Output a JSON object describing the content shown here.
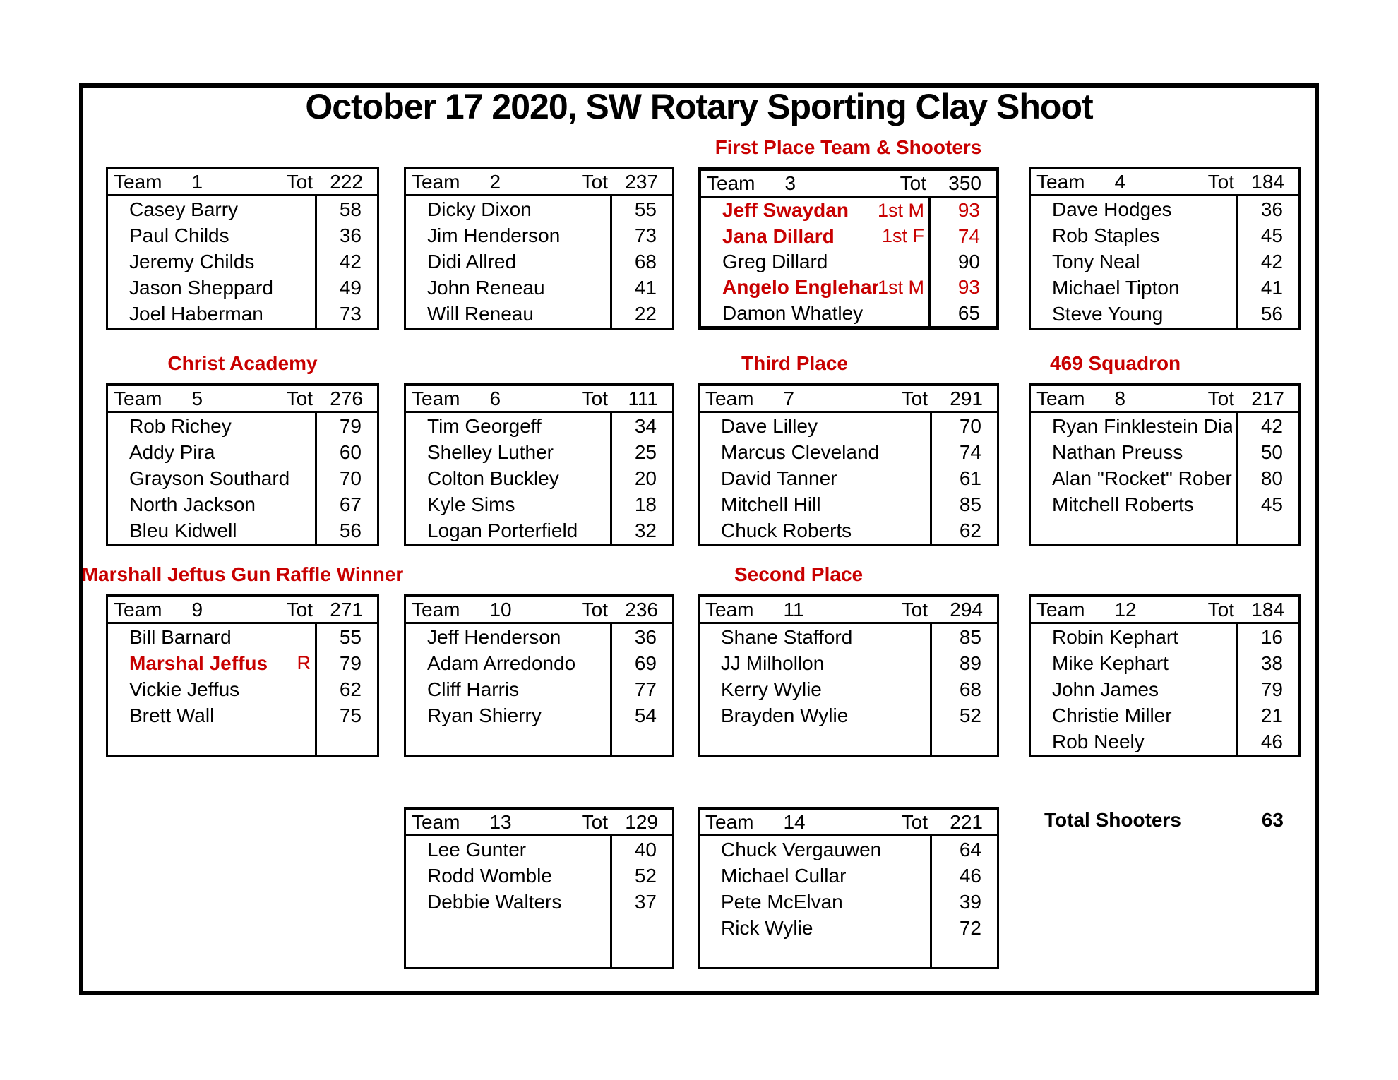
{
  "title": "October 17 2020, SW Rotary Sporting Clay Shoot",
  "summary": {
    "label": "Total Shooters",
    "value": "63"
  },
  "colors": {
    "accent_red": "#C80000",
    "text_black": "#000000",
    "border_black": "#000000"
  },
  "header_labels": {
    "team": "Team",
    "tot": "Tot"
  },
  "teams": [
    {
      "number": "1",
      "total": "222",
      "caption": "",
      "players": [
        {
          "name": "Casey Barry",
          "tag": "",
          "score": "58",
          "red_name": false,
          "red_score": false
        },
        {
          "name": "Paul Childs",
          "tag": "",
          "score": "36",
          "red_name": false,
          "red_score": false
        },
        {
          "name": "Jeremy Childs",
          "tag": "",
          "score": "42",
          "red_name": false,
          "red_score": false
        },
        {
          "name": "Jason Sheppard",
          "tag": "",
          "score": "49",
          "red_name": false,
          "red_score": false
        },
        {
          "name": "Joel Haberman",
          "tag": "",
          "score": "73",
          "red_name": false,
          "red_score": false
        }
      ]
    },
    {
      "number": "2",
      "total": "237",
      "caption": "",
      "players": [
        {
          "name": "Dicky Dixon",
          "tag": "",
          "score": "55",
          "red_name": false,
          "red_score": false
        },
        {
          "name": "Jim Henderson",
          "tag": "",
          "score": "73",
          "red_name": false,
          "red_score": false
        },
        {
          "name": "Didi Allred",
          "tag": "",
          "score": "68",
          "red_name": false,
          "red_score": false
        },
        {
          "name": "John Reneau",
          "tag": "",
          "score": "41",
          "red_name": false,
          "red_score": false
        },
        {
          "name": "Will Reneau",
          "tag": "",
          "score": "22",
          "red_name": false,
          "red_score": false
        }
      ]
    },
    {
      "number": "3",
      "total": "350",
      "caption": "First Place Team & Shooters",
      "players": [
        {
          "name": "Jeff Swaydan",
          "tag": "1st M",
          "score": "93",
          "red_name": true,
          "red_score": true
        },
        {
          "name": "Jana Dillard",
          "tag": "1st F",
          "score": "74",
          "red_name": true,
          "red_score": true
        },
        {
          "name": "Greg Dillard",
          "tag": "",
          "score": "90",
          "red_name": false,
          "red_score": false
        },
        {
          "name": "Angelo Englehart",
          "tag": "1st M",
          "score": "93",
          "red_name": true,
          "red_score": true
        },
        {
          "name": "Damon Whatley",
          "tag": "",
          "score": "65",
          "red_name": false,
          "red_score": false
        }
      ]
    },
    {
      "number": "4",
      "total": "184",
      "caption": "",
      "players": [
        {
          "name": "Dave Hodges",
          "tag": "",
          "score": "36",
          "red_name": false,
          "red_score": false
        },
        {
          "name": "Rob Staples",
          "tag": "",
          "score": "45",
          "red_name": false,
          "red_score": false
        },
        {
          "name": "Tony Neal",
          "tag": "",
          "score": "42",
          "red_name": false,
          "red_score": false
        },
        {
          "name": "Michael Tipton",
          "tag": "",
          "score": "41",
          "red_name": false,
          "red_score": false
        },
        {
          "name": "Steve Young",
          "tag": "",
          "score": "56",
          "red_name": false,
          "red_score": false
        }
      ]
    },
    {
      "number": "5",
      "total": "276",
      "caption": "Christ Academy",
      "players": [
        {
          "name": "Rob Richey",
          "tag": "",
          "score": "79",
          "red_name": false,
          "red_score": false
        },
        {
          "name": "Addy Pira",
          "tag": "",
          "score": "60",
          "red_name": false,
          "red_score": false
        },
        {
          "name": "Grayson Southard",
          "tag": "",
          "score": "70",
          "red_name": false,
          "red_score": false
        },
        {
          "name": "North Jackson",
          "tag": "",
          "score": "67",
          "red_name": false,
          "red_score": false
        },
        {
          "name": "Bleu Kidwell",
          "tag": "",
          "score": "56",
          "red_name": false,
          "red_score": false
        }
      ]
    },
    {
      "number": "6",
      "total": "111",
      "caption": "",
      "players": [
        {
          "name": "Tim Georgeff",
          "tag": "",
          "score": "34",
          "red_name": false,
          "red_score": false
        },
        {
          "name": "Shelley Luther",
          "tag": "",
          "score": "25",
          "red_name": false,
          "red_score": false
        },
        {
          "name": "Colton Buckley",
          "tag": "",
          "score": "20",
          "red_name": false,
          "red_score": false
        },
        {
          "name": "Kyle Sims",
          "tag": "",
          "score": "18",
          "red_name": false,
          "red_score": false
        },
        {
          "name": "Logan Porterfield",
          "tag": "",
          "score": "32",
          "red_name": false,
          "red_score": false
        }
      ]
    },
    {
      "number": "7",
      "total": "291",
      "caption": "Third Place",
      "players": [
        {
          "name": "Dave Lilley",
          "tag": "",
          "score": "70",
          "red_name": false,
          "red_score": false
        },
        {
          "name": "Marcus Cleveland",
          "tag": "",
          "score": "74",
          "red_name": false,
          "red_score": false
        },
        {
          "name": "David Tanner",
          "tag": "",
          "score": "61",
          "red_name": false,
          "red_score": false
        },
        {
          "name": "Mitchell Hill",
          "tag": "",
          "score": "85",
          "red_name": false,
          "red_score": false
        },
        {
          "name": "Chuck Roberts",
          "tag": "",
          "score": "62",
          "red_name": false,
          "red_score": false
        }
      ]
    },
    {
      "number": "8",
      "total": "217",
      "caption": "469 Squadron",
      "players": [
        {
          "name": "Ryan Finklestein Diaz",
          "tag": "",
          "score": "42",
          "red_name": false,
          "red_score": false
        },
        {
          "name": "Nathan Preuss",
          "tag": "",
          "score": "50",
          "red_name": false,
          "red_score": false
        },
        {
          "name": "Alan \"Rocket\" Roberts",
          "tag": "",
          "score": "80",
          "red_name": false,
          "red_score": false
        },
        {
          "name": "Mitchell Roberts",
          "tag": "",
          "score": "45",
          "red_name": false,
          "red_score": false
        },
        {
          "name": "",
          "tag": "",
          "score": "",
          "red_name": false,
          "red_score": false
        }
      ]
    },
    {
      "number": "9",
      "total": "271",
      "caption": "Marshall Jeftus Gun Raffle Winner",
      "players": [
        {
          "name": "Bill Barnard",
          "tag": "",
          "score": "55",
          "red_name": false,
          "red_score": false
        },
        {
          "name": "Marshal Jeffus",
          "tag": "R",
          "score": "79",
          "red_name": true,
          "red_score": false
        },
        {
          "name": "Vickie Jeffus",
          "tag": "",
          "score": "62",
          "red_name": false,
          "red_score": false
        },
        {
          "name": "Brett Wall",
          "tag": "",
          "score": "75",
          "red_name": false,
          "red_score": false
        },
        {
          "name": "",
          "tag": "",
          "score": "",
          "red_name": false,
          "red_score": false
        }
      ]
    },
    {
      "number": "10",
      "total": "236",
      "caption": "",
      "players": [
        {
          "name": "Jeff Henderson",
          "tag": "",
          "score": "36",
          "red_name": false,
          "red_score": false
        },
        {
          "name": "Adam Arredondo",
          "tag": "",
          "score": "69",
          "red_name": false,
          "red_score": false
        },
        {
          "name": "Cliff Harris",
          "tag": "",
          "score": "77",
          "red_name": false,
          "red_score": false
        },
        {
          "name": "Ryan Shierry",
          "tag": "",
          "score": "54",
          "red_name": false,
          "red_score": false
        },
        {
          "name": "",
          "tag": "",
          "score": "",
          "red_name": false,
          "red_score": false
        }
      ]
    },
    {
      "number": "11",
      "total": "294",
      "caption": "Second Place",
      "players": [
        {
          "name": "Shane Stafford",
          "tag": "",
          "score": "85",
          "red_name": false,
          "red_score": false
        },
        {
          "name": "JJ Milhollon",
          "tag": "",
          "score": "89",
          "red_name": false,
          "red_score": false
        },
        {
          "name": "Kerry Wylie",
          "tag": "",
          "score": "68",
          "red_name": false,
          "red_score": false
        },
        {
          "name": "Brayden Wylie",
          "tag": "",
          "score": "52",
          "red_name": false,
          "red_score": false
        },
        {
          "name": "",
          "tag": "",
          "score": "",
          "red_name": false,
          "red_score": false
        }
      ]
    },
    {
      "number": "12",
      "total": "184",
      "caption": "",
      "players": [
        {
          "name": "Robin Kephart",
          "tag": "",
          "score": "16",
          "red_name": false,
          "red_score": false
        },
        {
          "name": "Mike Kephart",
          "tag": "",
          "score": "38",
          "red_name": false,
          "red_score": false
        },
        {
          "name": "John James",
          "tag": "",
          "score": "79",
          "red_name": false,
          "red_score": false
        },
        {
          "name": "Christie Miller",
          "tag": "",
          "score": "21",
          "red_name": false,
          "red_score": false
        },
        {
          "name": "Rob Neely",
          "tag": "",
          "score": "46",
          "red_name": false,
          "red_score": false
        }
      ]
    },
    {
      "number": "13",
      "total": "129",
      "caption": "",
      "players": [
        {
          "name": "Lee Gunter",
          "tag": "",
          "score": "40",
          "red_name": false,
          "red_score": false
        },
        {
          "name": "Rodd Womble",
          "tag": "",
          "score": "52",
          "red_name": false,
          "red_score": false
        },
        {
          "name": "Debbie Walters",
          "tag": "",
          "score": "37",
          "red_name": false,
          "red_score": false
        },
        {
          "name": "",
          "tag": "",
          "score": "",
          "red_name": false,
          "red_score": false
        },
        {
          "name": "",
          "tag": "",
          "score": "",
          "red_name": false,
          "red_score": false
        }
      ]
    },
    {
      "number": "14",
      "total": "221",
      "caption": "",
      "players": [
        {
          "name": "Chuck Vergauwen",
          "tag": "",
          "score": "64",
          "red_name": false,
          "red_score": false
        },
        {
          "name": "Michael Cullar",
          "tag": "",
          "score": "46",
          "red_name": false,
          "red_score": false
        },
        {
          "name": "Pete McElvan",
          "tag": "",
          "score": "39",
          "red_name": false,
          "red_score": false
        },
        {
          "name": "Rick Wylie",
          "tag": "",
          "score": "72",
          "red_name": false,
          "red_score": false
        },
        {
          "name": "",
          "tag": "",
          "score": "",
          "red_name": false,
          "red_score": false
        }
      ]
    }
  ]
}
